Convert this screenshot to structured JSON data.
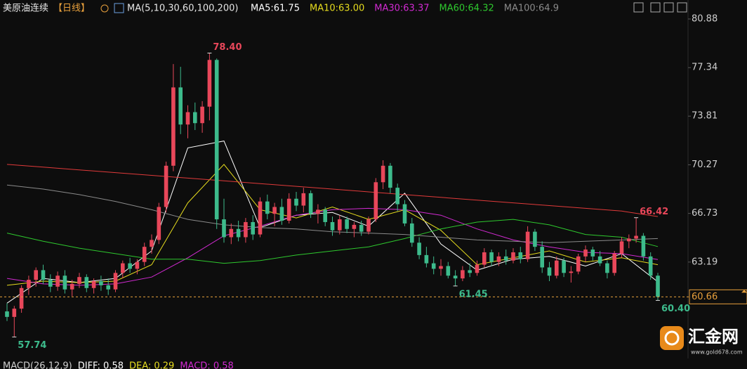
{
  "header": {
    "symbol": "美原油连续",
    "period": "【日线】",
    "ma_spec": "MA(5,10,30,60,100,200)"
  },
  "chart_data": {
    "type": "candlestick",
    "up_color": "#e8475a",
    "down_color": "#3dbb8c",
    "ylim": [
      56.6,
      80.88
    ],
    "yticks": [
      80.88,
      77.34,
      73.81,
      70.27,
      66.73,
      63.19
    ],
    "last_price": 60.66,
    "last_price_color": "#e8a03c",
    "open": [
      59.6,
      59.2,
      59.8,
      61.3,
      61.9,
      62.6,
      61.9,
      61.4,
      62.2,
      61.2,
      61.6,
      62.1,
      61.3,
      61.8,
      61.5,
      61.2,
      62.4,
      63.1,
      62.7,
      63.2,
      64.3,
      64.8,
      67.2,
      70.2,
      75.9,
      73.2,
      74.1,
      73.3,
      74.5,
      77.9,
      66.3,
      65.0,
      65.6,
      65.0,
      66.1,
      65.2,
      67.6,
      66.7,
      67.2,
      66.2,
      67.8,
      67.3,
      68.2,
      66.7,
      67.0,
      66.1,
      65.5,
      66.3,
      65.6,
      65.9,
      65.4,
      66.3,
      69.0,
      70.2,
      68.6,
      67.4,
      66.0,
      64.6,
      63.7,
      63.1,
      62.7,
      62.9,
      62.2,
      62.0,
      62.6,
      62.4,
      63.0,
      63.9,
      63.2,
      63.6,
      63.3,
      63.9,
      63.4,
      65.4,
      64.3,
      62.8,
      62.2,
      63.3,
      62.4,
      62.5,
      63.6,
      64.1,
      63.6,
      63.1,
      62.4,
      63.8,
      64.7,
      64.9,
      65.1,
      63.6,
      62.2
    ],
    "high": [
      60.2,
      60.0,
      61.5,
      62.2,
      62.8,
      63.0,
      62.3,
      62.5,
      62.6,
      61.9,
      62.4,
      62.3,
      62.0,
      62.2,
      62.0,
      62.6,
      63.3,
      63.5,
      63.4,
      64.6,
      65.2,
      67.5,
      70.5,
      77.6,
      77.4,
      74.6,
      74.8,
      74.9,
      78.4,
      78.0,
      67.8,
      66.0,
      66.2,
      66.4,
      66.6,
      67.9,
      68.1,
      67.5,
      67.8,
      68.2,
      68.3,
      68.6,
      68.4,
      67.4,
      67.2,
      66.5,
      66.6,
      66.5,
      66.1,
      66.2,
      66.5,
      69.3,
      70.6,
      70.4,
      68.9,
      67.7,
      66.4,
      65.0,
      64.3,
      63.6,
      63.4,
      63.2,
      62.6,
      62.9,
      63.1,
      63.3,
      64.2,
      64.1,
      63.9,
      64.1,
      64.2,
      64.3,
      65.8,
      65.6,
      64.7,
      63.2,
      63.6,
      63.5,
      62.9,
      63.8,
      64.4,
      64.3,
      64.0,
      63.3,
      64.0,
      65.0,
      65.2,
      66.42,
      65.3,
      63.9,
      62.4
    ],
    "low": [
      58.9,
      57.74,
      59.5,
      60.8,
      61.4,
      61.6,
      61.0,
      61.1,
      60.9,
      60.7,
      61.3,
      61.0,
      60.9,
      61.1,
      60.8,
      61.0,
      62.0,
      62.4,
      62.3,
      62.9,
      63.8,
      64.5,
      66.8,
      69.8,
      72.5,
      72.2,
      72.8,
      72.6,
      73.5,
      65.6,
      64.6,
      64.5,
      64.7,
      64.6,
      64.8,
      65.0,
      66.3,
      65.8,
      65.9,
      66.0,
      66.9,
      66.8,
      66.4,
      66.0,
      65.8,
      65.1,
      65.2,
      65.3,
      65.0,
      65.1,
      65.2,
      66.1,
      68.5,
      68.2,
      66.9,
      65.8,
      64.3,
      63.4,
      62.8,
      62.3,
      62.2,
      62.0,
      61.45,
      61.8,
      62.1,
      62.2,
      62.8,
      62.9,
      62.9,
      63.0,
      63.1,
      63.1,
      63.2,
      64.0,
      62.4,
      61.8,
      62.0,
      62.1,
      61.7,
      62.3,
      63.2,
      63.3,
      62.9,
      62.0,
      62.2,
      63.5,
      64.2,
      64.6,
      63.3,
      61.9,
      60.4
    ],
    "close": [
      59.2,
      59.8,
      61.3,
      61.9,
      62.6,
      61.9,
      61.4,
      62.2,
      61.2,
      61.6,
      62.1,
      61.3,
      61.8,
      61.5,
      61.2,
      62.4,
      63.1,
      62.7,
      63.2,
      64.3,
      64.8,
      67.2,
      70.2,
      75.9,
      73.2,
      74.1,
      73.3,
      74.5,
      77.9,
      66.3,
      65.0,
      65.6,
      65.0,
      66.1,
      65.2,
      67.6,
      66.7,
      67.2,
      66.2,
      67.8,
      67.3,
      68.2,
      66.7,
      67.0,
      66.1,
      65.5,
      66.3,
      65.6,
      65.9,
      65.4,
      66.3,
      69.0,
      70.2,
      68.6,
      67.4,
      66.0,
      64.6,
      63.7,
      63.1,
      62.7,
      62.9,
      62.2,
      62.0,
      62.6,
      62.4,
      63.0,
      63.9,
      63.2,
      63.6,
      63.3,
      63.9,
      63.4,
      65.4,
      64.3,
      62.8,
      62.2,
      63.3,
      62.4,
      62.5,
      63.6,
      64.1,
      63.6,
      63.1,
      62.4,
      63.8,
      64.7,
      64.9,
      65.1,
      63.6,
      62.2,
      60.66
    ],
    "annotations": [
      {
        "value": 78.4,
        "label": "78.40",
        "color": "#e8475a"
      },
      {
        "value": 57.74,
        "label": "57.74",
        "color": "#3dbb8c"
      },
      {
        "value": 61.45,
        "label": "61.45",
        "color": "#3dbb8c"
      },
      {
        "value": 66.42,
        "label": "66.42",
        "color": "#e8475a"
      },
      {
        "value": 60.4,
        "label": "60.40",
        "color": "#3dbb8c"
      }
    ],
    "series": [
      {
        "name": "MA5:61.75",
        "color": "#ffffff",
        "x": [
          0,
          5,
          10,
          15,
          20,
          25,
          30,
          35,
          40,
          45,
          50,
          55,
          60,
          65,
          70,
          75,
          80,
          85,
          90
        ],
        "values": [
          60.2,
          62.0,
          61.7,
          62.0,
          64.0,
          71.5,
          72.0,
          65.7,
          66.6,
          66.8,
          65.8,
          68.2,
          64.5,
          62.6,
          63.4,
          63.6,
          62.9,
          63.8,
          61.75
        ]
      },
      {
        "name": "MA10:63.00",
        "color": "#e6dc1e",
        "x": [
          0,
          5,
          10,
          15,
          20,
          25,
          30,
          35,
          40,
          45,
          50,
          55,
          60,
          65,
          70,
          75,
          80,
          85,
          90
        ],
        "values": [
          61.5,
          61.8,
          61.7,
          61.8,
          63.0,
          67.5,
          70.3,
          67.0,
          66.4,
          67.2,
          66.3,
          67.0,
          65.5,
          63.0,
          63.5,
          64.0,
          63.2,
          63.5,
          63.0
        ]
      },
      {
        "name": "MA30:63.37",
        "color": "#d22ad2",
        "x": [
          0,
          5,
          10,
          15,
          20,
          25,
          30,
          35,
          40,
          45,
          50,
          55,
          60,
          65,
          70,
          75,
          80,
          85,
          90
        ],
        "values": [
          62.0,
          61.6,
          61.5,
          61.6,
          62.1,
          63.5,
          65.1,
          65.8,
          66.6,
          67.0,
          67.1,
          67.0,
          66.6,
          65.6,
          64.8,
          64.3,
          63.9,
          63.8,
          63.37
        ]
      },
      {
        "name": "MA60:64.32",
        "color": "#2ec82e",
        "x": [
          0,
          5,
          10,
          15,
          20,
          25,
          30,
          35,
          40,
          45,
          50,
          55,
          60,
          65,
          70,
          75,
          80,
          85,
          90
        ],
        "values": [
          65.3,
          64.7,
          64.2,
          63.8,
          63.4,
          63.4,
          63.1,
          63.3,
          63.7,
          64.0,
          64.3,
          64.9,
          65.6,
          66.1,
          66.3,
          65.9,
          65.2,
          65.0,
          64.32
        ]
      },
      {
        "name": "MA100:64.9",
        "color": "#8a8a8a",
        "x": [
          0,
          5,
          10,
          15,
          20,
          25,
          30,
          35,
          40,
          45,
          50,
          55,
          60,
          65,
          70,
          75,
          80,
          85,
          90
        ],
        "values": [
          68.8,
          68.5,
          68.1,
          67.6,
          67.0,
          66.3,
          65.9,
          65.7,
          65.6,
          65.4,
          65.3,
          65.2,
          65.0,
          64.8,
          64.7,
          64.6,
          64.7,
          64.8,
          64.9
        ]
      },
      {
        "color": "#e03a3a",
        "x": [
          0,
          5,
          10,
          15,
          20,
          25,
          30,
          35,
          40,
          45,
          50,
          55,
          60,
          65,
          70,
          75,
          80,
          85,
          90
        ],
        "values": [
          70.3,
          70.1,
          69.9,
          69.7,
          69.5,
          69.3,
          69.1,
          68.9,
          68.7,
          68.5,
          68.3,
          68.1,
          67.9,
          67.7,
          67.5,
          67.3,
          67.1,
          66.9,
          66.5
        ]
      }
    ]
  },
  "indicator_header": [
    "MACD(26,12,9)",
    "DIFF: 0.58",
    "DEA: 0.29",
    "MACD: 0.58"
  ],
  "watermark": {
    "brand": "汇金网",
    "site": "www.gold678.com"
  }
}
